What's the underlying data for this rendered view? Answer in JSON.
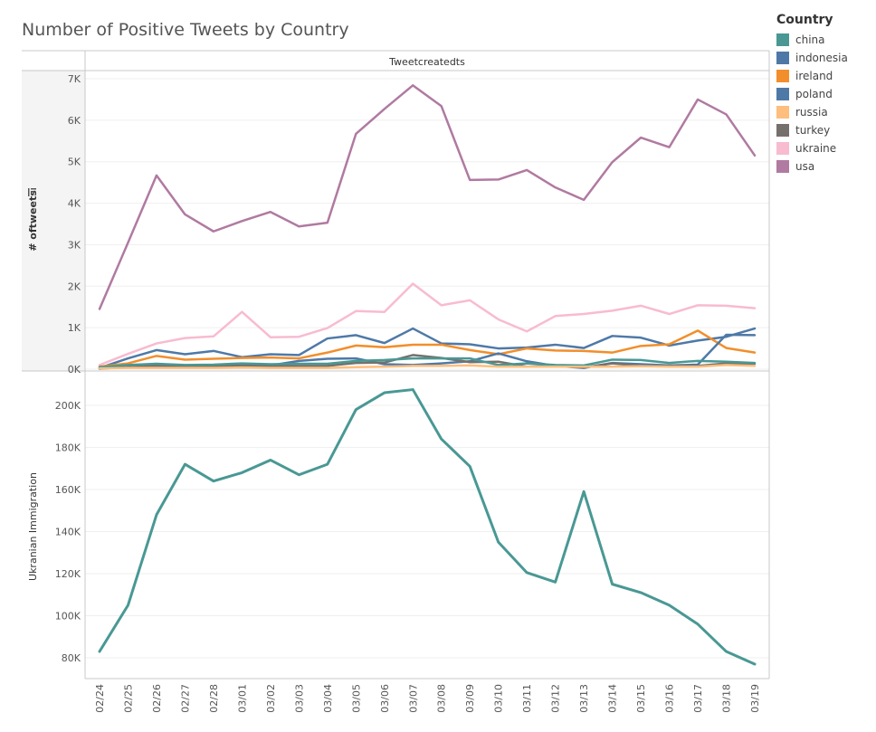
{
  "title": "Number of Positive Tweets by Country",
  "chart_data": [
    {
      "type": "line",
      "column_header": "Tweetcreatedts",
      "ylabel": "# oftweets",
      "ylim": [
        0,
        7000
      ],
      "yticks": [
        0,
        1000,
        2000,
        3000,
        4000,
        5000,
        6000,
        7000
      ],
      "ytick_labels": [
        "0K",
        "1K",
        "2K",
        "3K",
        "4K",
        "5K",
        "6K",
        "7K"
      ],
      "x": [
        "02/24",
        "02/25",
        "02/26",
        "02/27",
        "02/28",
        "03/01",
        "03/02",
        "03/03",
        "03/04",
        "03/05",
        "03/06",
        "03/07",
        "03/08",
        "03/09",
        "03/10",
        "03/11",
        "03/12",
        "03/13",
        "03/14",
        "03/15",
        "03/16",
        "03/17",
        "03/18",
        "03/19"
      ],
      "series": [
        {
          "name": "usa",
          "color": "#B07AA1",
          "values": [
            1450,
            3050,
            4670,
            3730,
            3320,
            3570,
            3790,
            3440,
            3530,
            5670,
            6270,
            6840,
            6340,
            4560,
            4570,
            4800,
            4380,
            4080,
            4990,
            5580,
            5350,
            6500,
            6140,
            5150
          ]
        },
        {
          "name": "ukraine",
          "color": "#F8BBD0",
          "values": [
            100,
            370,
            620,
            750,
            790,
            1380,
            770,
            780,
            990,
            1400,
            1380,
            2060,
            1540,
            1660,
            1200,
            910,
            1280,
            1330,
            1410,
            1530,
            1330,
            1540,
            1530,
            1470
          ]
        },
        {
          "name": "poland",
          "color": "#4E79A7",
          "values": [
            30,
            260,
            460,
            360,
            440,
            290,
            360,
            340,
            740,
            820,
            630,
            980,
            620,
            600,
            500,
            520,
            590,
            510,
            800,
            760,
            570,
            690,
            780,
            980
          ]
        },
        {
          "name": "ireland",
          "color": "#F28E2B",
          "values": [
            60,
            140,
            320,
            230,
            250,
            270,
            280,
            260,
            400,
            570,
            530,
            590,
            590,
            460,
            360,
            500,
            450,
            440,
            400,
            560,
            600,
            930,
            510,
            400
          ]
        },
        {
          "name": "indonesia",
          "color": "#4E79A7",
          "values": [
            10,
            50,
            80,
            60,
            70,
            90,
            90,
            200,
            250,
            260,
            120,
            100,
            140,
            190,
            380,
            190,
            80,
            30,
            150,
            120,
            90,
            110,
            830,
            820
          ]
        },
        {
          "name": "turkey",
          "color": "#76706C",
          "values": [
            20,
            40,
            90,
            70,
            80,
            80,
            80,
            80,
            80,
            150,
            160,
            340,
            270,
            170,
            180,
            60,
            80,
            40,
            140,
            80,
            80,
            80,
            140,
            130
          ]
        },
        {
          "name": "china",
          "color": "#499894",
          "values": [
            50,
            100,
            130,
            100,
            110,
            140,
            120,
            130,
            130,
            200,
            220,
            260,
            260,
            260,
            100,
            140,
            100,
            90,
            230,
            220,
            150,
            200,
            180,
            150
          ]
        },
        {
          "name": "russia",
          "color": "#FFBE7D",
          "values": [
            20,
            30,
            30,
            30,
            30,
            40,
            30,
            30,
            30,
            50,
            60,
            80,
            80,
            90,
            60,
            60,
            60,
            60,
            60,
            70,
            60,
            60,
            100,
            80
          ]
        }
      ]
    },
    {
      "type": "line",
      "ylabel": "Ukranian Immigration",
      "ylim": [
        70000,
        212000
      ],
      "yticks": [
        80000,
        100000,
        120000,
        140000,
        160000,
        180000,
        200000
      ],
      "ytick_labels": [
        "80K",
        "100K",
        "120K",
        "140K",
        "160K",
        "180K",
        "200K"
      ],
      "x": [
        "02/24",
        "02/25",
        "02/26",
        "02/27",
        "02/28",
        "03/01",
        "03/02",
        "03/03",
        "03/04",
        "03/05",
        "03/06",
        "03/07",
        "03/08",
        "03/09",
        "03/10",
        "03/11",
        "03/12",
        "03/13",
        "03/14",
        "03/15",
        "03/16",
        "03/17",
        "03/18",
        "03/19"
      ],
      "x_tick_labels": [
        "02/24",
        "02/25",
        "02/26",
        "02/27",
        "02/28",
        "03/01",
        "03/02",
        "03/03",
        "03/04",
        "03/05",
        "03/06",
        "03/07",
        "03/08",
        "03/09",
        "03/10",
        "03/11",
        "03/12",
        "03/13",
        "03/14",
        "03/15",
        "03/16",
        "03/17",
        "03/18",
        "03/19"
      ],
      "series": [
        {
          "color": "#499894",
          "values": [
            83000,
            105000,
            148000,
            172000,
            164000,
            168000,
            174000,
            167000,
            172000,
            198000,
            206000,
            207500,
            184000,
            171000,
            135000,
            120500,
            116000,
            159000,
            115000,
            111000,
            105000,
            96000,
            83000,
            77000
          ]
        }
      ]
    }
  ],
  "legend": {
    "title": "Country",
    "items": [
      {
        "label": "china",
        "color": "#499894"
      },
      {
        "label": "indonesia",
        "color": "#4E79A7"
      },
      {
        "label": "ireland",
        "color": "#F28E2B"
      },
      {
        "label": "poland",
        "color": "#4E79A7"
      },
      {
        "label": "russia",
        "color": "#FFBE7D"
      },
      {
        "label": "turkey",
        "color": "#76706C"
      },
      {
        "label": "ukraine",
        "color": "#F8BBD0"
      },
      {
        "label": "usa",
        "color": "#B07AA1"
      }
    ]
  }
}
